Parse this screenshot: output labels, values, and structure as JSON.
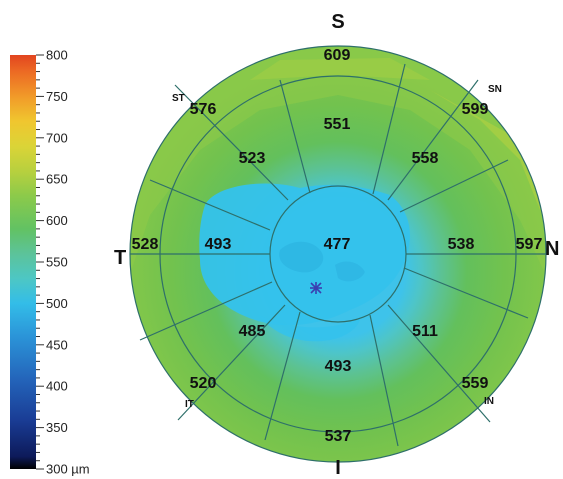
{
  "chart_data": {
    "type": "heatmap",
    "colorbar": {
      "ticks": [
        800,
        750,
        700,
        650,
        600,
        550,
        500,
        450,
        400,
        350,
        300
      ],
      "tick_labels": [
        "800",
        "750",
        "700",
        "650",
        "600",
        "550",
        "500",
        "450",
        "400",
        "350",
        "300 µm"
      ],
      "range": [
        300,
        800
      ],
      "colors": {
        "300": "#000000",
        "350": "#10206a",
        "400": "#1f4fa8",
        "450": "#2a8fd6",
        "500": "#33c1ea",
        "525": "#5cc8a8",
        "550": "#66c25a",
        "600": "#8fcb48",
        "650": "#c5d43a",
        "700": "#f0cc2e",
        "750": "#ef7a26",
        "800": "#e0421e"
      }
    },
    "directions": {
      "superior": "S",
      "inferior": "I",
      "temporal": "T",
      "nasal": "N",
      "superotemporal": "ST",
      "superonasal": "SN",
      "inferotemporal": "IT",
      "inferonasal": "IN"
    },
    "center": {
      "value": 477
    },
    "mid_ring": {
      "superior": 551,
      "nasal": 538,
      "inferior": 493,
      "temporal": 493
    },
    "mid_ring_diagonal": {
      "superotemporal": 523,
      "superonasal": 558,
      "inferonasal": 511,
      "inferotemporal": 485
    },
    "outer_ring": {
      "superior": 609,
      "superonasal": 599,
      "nasal": 597,
      "inferonasal": 559,
      "inferior": 537,
      "inferotemporal": 520,
      "temporal": 528,
      "superotemporal": 576
    }
  }
}
